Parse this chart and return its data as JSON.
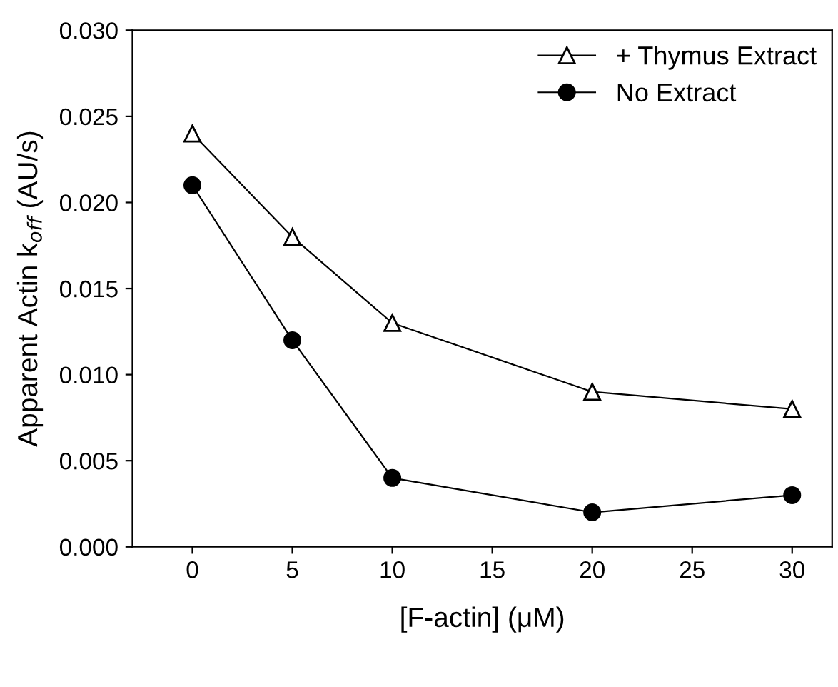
{
  "chart_data": {
    "type": "line",
    "xlabel": "[F-actin] (μM)",
    "ylabel": "Apparent Actin k$_{off}$ (AU/s)",
    "x": [
      0,
      5,
      10,
      20,
      30
    ],
    "series": [
      {
        "name": "+ Thymus Extract",
        "color": "#000000",
        "marker": "triangle",
        "values": [
          0.024,
          0.018,
          0.013,
          0.009,
          0.008
        ]
      },
      {
        "name": "No Extract",
        "color": "#000000",
        "marker": "circle",
        "values": [
          0.021,
          0.012,
          0.004,
          0.002,
          0.003
        ]
      }
    ],
    "xlim": [
      -3,
      32
    ],
    "xticks": [
      0,
      5,
      10,
      15,
      20,
      25,
      30
    ],
    "ylim": [
      0,
      0.03
    ],
    "yticks": [
      {
        "value": 0,
        "label": "0.000"
      },
      {
        "value": 0.005,
        "label": "0.005"
      },
      {
        "value": 0.01,
        "label": "0.010"
      },
      {
        "value": 0.015,
        "label": "0.015"
      },
      {
        "value": 0.02,
        "label": "0.020"
      },
      {
        "value": 0.025,
        "label": "0.025"
      },
      {
        "value": 0.03,
        "label": "0.030"
      }
    ],
    "grid": false,
    "legend": "top right",
    "line_style": "solid"
  }
}
